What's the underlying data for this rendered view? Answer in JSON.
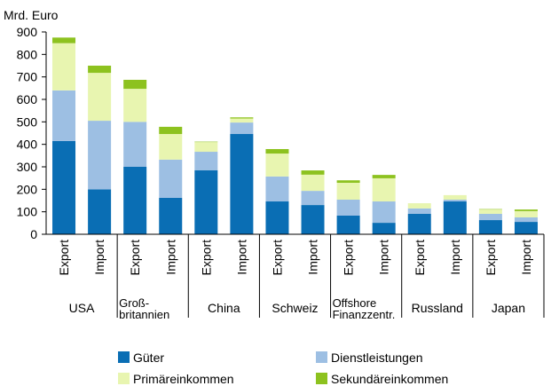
{
  "chart_data": {
    "type": "stacked_bar",
    "y_label": "Mrd. Euro",
    "categories": [
      "Export",
      "Import",
      "Export",
      "Import",
      "Export",
      "Import",
      "Export",
      "Import",
      "Export",
      "Import",
      "Export",
      "Import",
      "Export",
      "Import"
    ],
    "groups": [
      "USA",
      "Groß-\nbritannien",
      "China",
      "Schweiz",
      "Offshore\nFinanzzentr.",
      "Russland",
      "Japan"
    ],
    "series": [
      {
        "name": "Güter",
        "color": "#0a6eb4",
        "values": [
          415,
          200,
          300,
          162,
          285,
          446,
          146,
          130,
          83,
          51,
          91,
          146,
          63,
          55
        ]
      },
      {
        "name": "Dienstleistungen",
        "color": "#9dbfe3",
        "values": [
          225,
          305,
          200,
          170,
          82,
          51,
          111,
          63,
          71,
          95,
          24,
          8,
          28,
          20
        ]
      },
      {
        "name": "Primäreinkommen",
        "color": "#e8f5b0",
        "values": [
          210,
          213,
          147,
          114,
          43,
          18,
          102,
          72,
          75,
          103,
          23,
          20,
          19,
          28
        ]
      },
      {
        "name": "Sekundäreinkommen",
        "color": "#8dc21f",
        "values": [
          25,
          32,
          40,
          32,
          2,
          5,
          20,
          19,
          11,
          15,
          0,
          0,
          2,
          7
        ]
      }
    ],
    "ylim": [
      0,
      900
    ],
    "yticks": [
      0,
      100,
      200,
      300,
      400,
      500,
      600,
      700,
      800,
      900
    ],
    "grid": false
  }
}
